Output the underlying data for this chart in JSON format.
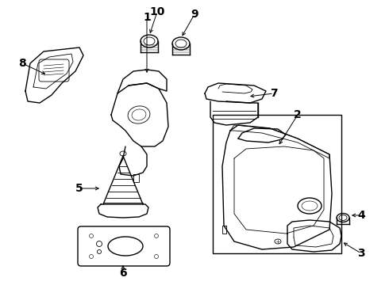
{
  "background_color": "#ffffff",
  "label_fontsize": 10,
  "label_fontweight": "bold",
  "lw_main": 1.0,
  "lw_detail": 0.6
}
